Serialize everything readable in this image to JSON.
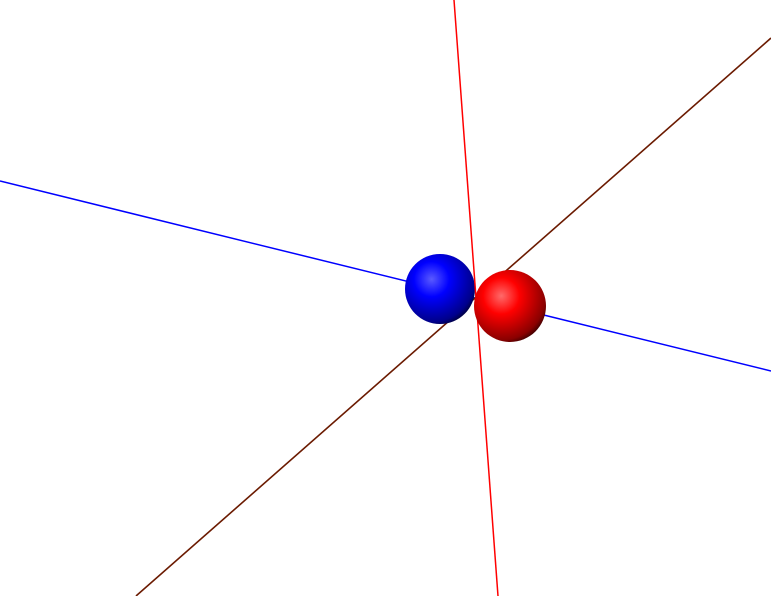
{
  "scene": {
    "background": "#ffffff",
    "axes": [
      {
        "name": "x-axis",
        "color": "#0000ff"
      },
      {
        "name": "y-axis",
        "color": "#ff0000"
      },
      {
        "name": "z-axis",
        "color": "#6b1a00"
      }
    ],
    "atoms": [
      {
        "name": "blue-atom",
        "color": "#0000ff",
        "highlight": "#4a4aff",
        "shadow": "#000033"
      },
      {
        "name": "red-atom",
        "color": "#ff0000",
        "highlight": "#ff5a5a",
        "shadow": "#330000"
      }
    ]
  }
}
